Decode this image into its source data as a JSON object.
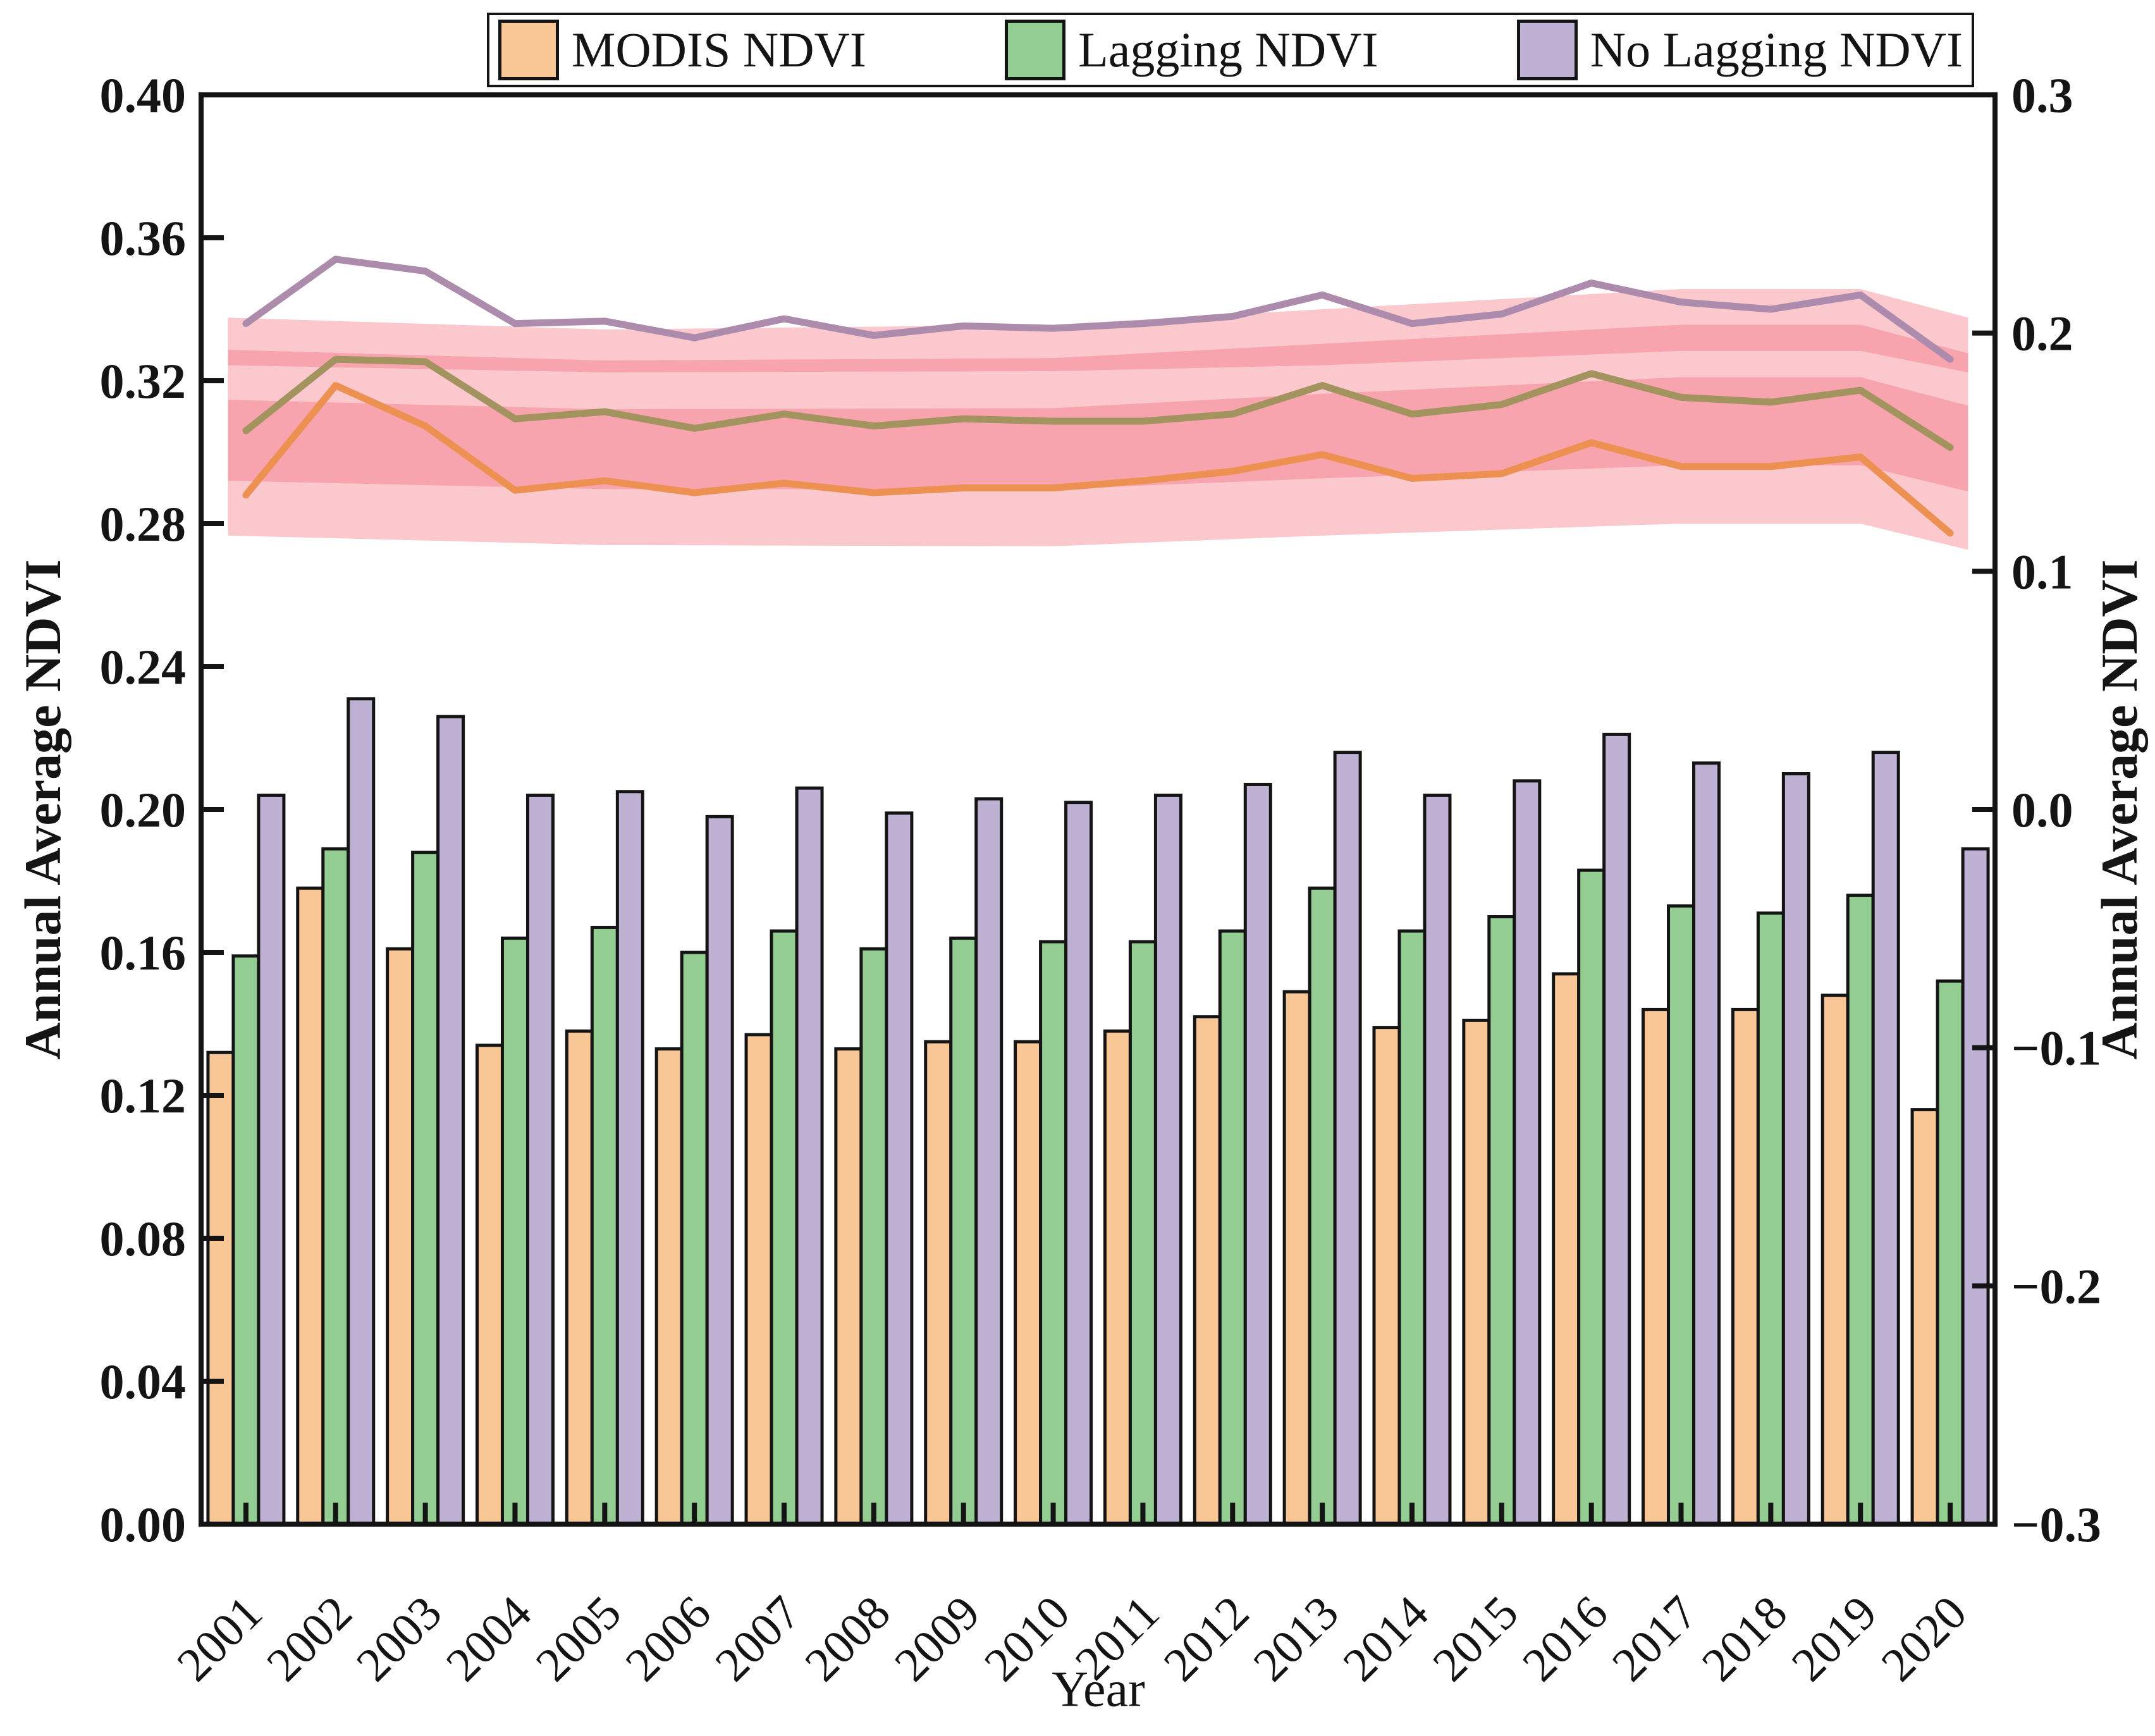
{
  "figure": {
    "background": "#ffffff",
    "frame_color": "#141414"
  },
  "axes": {
    "left_title": "Annual Average NDVI",
    "right_title": "Annual Average NDVI",
    "x_title": "Year",
    "bars_axis": "left",
    "lines_axis": "right"
  },
  "chart_data": {
    "type": "bar",
    "title": "",
    "xlabel": "Year",
    "ylabel_left": "Annual Average NDVI",
    "ylabel_right": "Annual Average NDVI",
    "ylim_left": [
      0.0,
      0.4
    ],
    "ylim_right": [
      -0.3,
      0.3
    ],
    "yticks_left": [
      "0.00",
      "0.04",
      "0.08",
      "0.12",
      "0.16",
      "0.20",
      "0.24",
      "0.28",
      "0.32",
      "0.36",
      "0.40"
    ],
    "yticks_right": [
      "0.3",
      "0.2",
      "0.1",
      "0.0",
      "−0.1",
      "−0.2",
      "−0.3"
    ],
    "grid": "off",
    "legend_position": "top",
    "categories": [
      "2001",
      "2002",
      "2003",
      "2004",
      "2005",
      "2006",
      "2007",
      "2008",
      "2009",
      "2010",
      "2011",
      "2012",
      "2013",
      "2014",
      "2015",
      "2016",
      "2017",
      "2018",
      "2019",
      "2020"
    ],
    "series": [
      {
        "name": "MODIS NDVI",
        "bar_color": "#F8C795",
        "line_color": "#ED9152",
        "values": [
          0.132,
          0.178,
          0.161,
          0.134,
          0.138,
          0.133,
          0.137,
          0.133,
          0.135,
          0.135,
          0.138,
          0.142,
          0.149,
          0.139,
          0.141,
          0.154,
          0.144,
          0.144,
          0.148,
          0.116
        ]
      },
      {
        "name": "Lagging NDVI",
        "bar_color": "#93CD92",
        "line_color": "#A3935F",
        "values": [
          0.159,
          0.189,
          0.188,
          0.164,
          0.167,
          0.16,
          0.166,
          0.161,
          0.164,
          0.163,
          0.163,
          0.166,
          0.178,
          0.166,
          0.17,
          0.183,
          0.173,
          0.171,
          0.176,
          0.152
        ]
      },
      {
        "name": "No Lagging NDVI",
        "bar_color": "#BFB1D4",
        "line_color": "#AC8BAD",
        "values": [
          0.204,
          0.231,
          0.226,
          0.204,
          0.205,
          0.198,
          0.206,
          0.199,
          0.203,
          0.202,
          0.204,
          0.207,
          0.216,
          0.204,
          0.208,
          0.221,
          0.213,
          0.21,
          0.216,
          0.189
        ]
      }
    ],
    "bands": {
      "color": "#F36172",
      "opacity": 0.35,
      "axis": "right",
      "items": [
        {
          "series": "MODIS NDVI",
          "points": [
            [
              -0.2,
              0.172,
              0.115
            ],
            [
              4,
              0.168,
              0.111
            ],
            [
              9,
              0.1685,
              0.1105
            ],
            [
              12,
              0.1745,
              0.115
            ],
            [
              16,
              0.1815,
              0.12
            ],
            [
              18,
              0.1815,
              0.12
            ],
            [
              19.2,
              0.1695,
              0.109
            ]
          ]
        },
        {
          "series": "Lagging NDVI",
          "points": [
            [
              -0.2,
              0.193,
              0.138
            ],
            [
              4,
              0.1885,
              0.1345
            ],
            [
              9,
              0.1895,
              0.1345
            ],
            [
              12,
              0.1955,
              0.139
            ],
            [
              16,
              0.2035,
              0.1445
            ],
            [
              18,
              0.2035,
              0.1445
            ],
            [
              19.2,
              0.1915,
              0.1335
            ]
          ]
        },
        {
          "series": "No Lagging NDVI",
          "points": [
            [
              -0.2,
              0.2065,
              0.1865
            ],
            [
              4,
              0.2015,
              0.1835
            ],
            [
              9,
              0.2035,
              0.184
            ],
            [
              12,
              0.21,
              0.1865
            ],
            [
              16,
              0.2185,
              0.1925
            ],
            [
              18,
              0.2185,
              0.1925
            ],
            [
              19.2,
              0.2065,
              0.1835
            ]
          ]
        }
      ]
    }
  }
}
